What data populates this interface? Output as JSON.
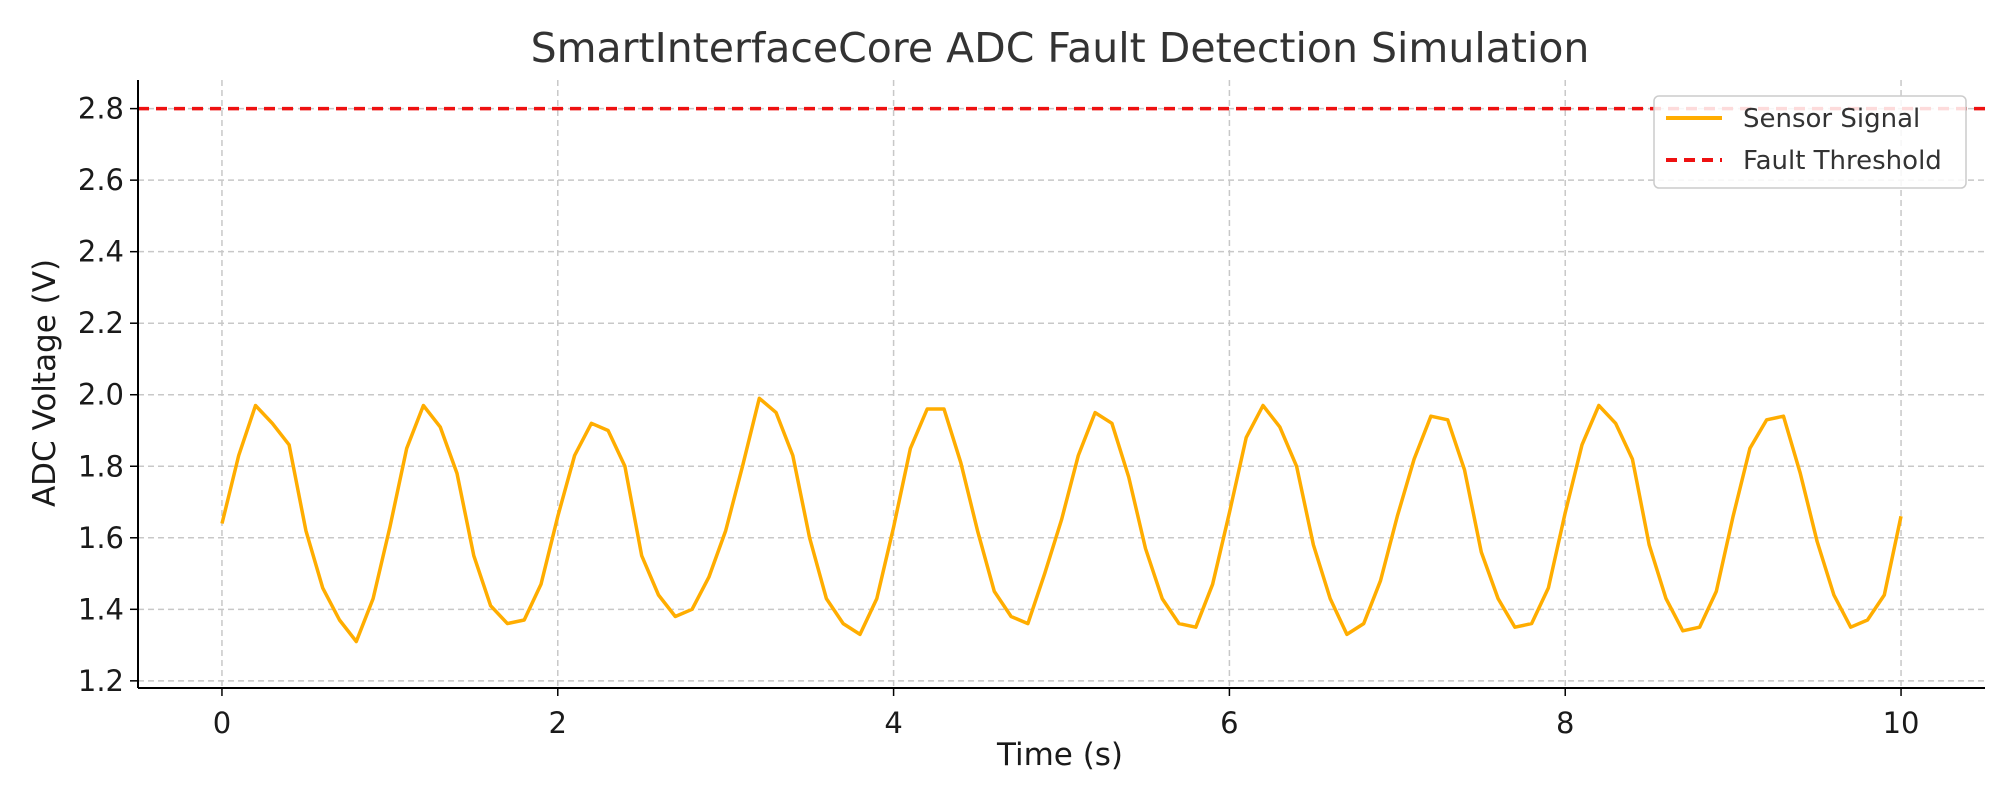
{
  "chart_data": {
    "type": "line",
    "title": "SmartInterfaceCore ADC Fault Detection Simulation",
    "xlabel": "Time (s)",
    "ylabel": "ADC Voltage (V)",
    "xlim": [
      -0.5,
      10.5
    ],
    "ylim": [
      1.18,
      2.88
    ],
    "x_ticks": [
      0,
      2,
      4,
      6,
      8,
      10
    ],
    "y_ticks": [
      1.2,
      1.4,
      1.6,
      1.8,
      2.0,
      2.2,
      2.4,
      2.6,
      2.8
    ],
    "grid": true,
    "legend_position": "top-right",
    "series": [
      {
        "name": "Sensor Signal",
        "color": "#ffad00",
        "style": "solid",
        "x": [
          0,
          0.1,
          0.2,
          0.3,
          0.4,
          0.5,
          0.6,
          0.7,
          0.8,
          0.9,
          1.0,
          1.1,
          1.2,
          1.3,
          1.4,
          1.5,
          1.6,
          1.7,
          1.8,
          1.9,
          2.0,
          2.1,
          2.2,
          2.3,
          2.4,
          2.5,
          2.6,
          2.7,
          2.8,
          2.9,
          3.0,
          3.1,
          3.2,
          3.3,
          3.4,
          3.5,
          3.6,
          3.7,
          3.8,
          3.9,
          4.0,
          4.1,
          4.2,
          4.3,
          4.4,
          4.5,
          4.6,
          4.7,
          4.8,
          4.9,
          5.0,
          5.1,
          5.2,
          5.3,
          5.4,
          5.5,
          5.6,
          5.7,
          5.8,
          5.9,
          6.0,
          6.1,
          6.2,
          6.3,
          6.4,
          6.5,
          6.6,
          6.7,
          6.8,
          6.9,
          7.0,
          7.1,
          7.2,
          7.3,
          7.4,
          7.5,
          7.6,
          7.7,
          7.8,
          7.9,
          8.0,
          8.1,
          8.2,
          8.3,
          8.4,
          8.5,
          8.6,
          8.7,
          8.8,
          8.9,
          9.0,
          9.1,
          9.2,
          9.3,
          9.4,
          9.5,
          9.6,
          9.7,
          9.8,
          9.9,
          10.0
        ],
        "y": [
          1.64,
          1.83,
          1.97,
          1.92,
          1.86,
          1.62,
          1.46,
          1.37,
          1.31,
          1.43,
          1.63,
          1.85,
          1.97,
          1.91,
          1.78,
          1.55,
          1.41,
          1.36,
          1.37,
          1.47,
          1.66,
          1.83,
          1.92,
          1.9,
          1.8,
          1.55,
          1.44,
          1.38,
          1.4,
          1.49,
          1.62,
          1.8,
          1.99,
          1.95,
          1.83,
          1.6,
          1.43,
          1.36,
          1.33,
          1.43,
          1.63,
          1.85,
          1.96,
          1.96,
          1.81,
          1.62,
          1.45,
          1.38,
          1.36,
          1.5,
          1.65,
          1.83,
          1.95,
          1.92,
          1.77,
          1.57,
          1.43,
          1.36,
          1.35,
          1.47,
          1.67,
          1.88,
          1.97,
          1.91,
          1.8,
          1.58,
          1.43,
          1.33,
          1.36,
          1.48,
          1.66,
          1.82,
          1.94,
          1.93,
          1.79,
          1.56,
          1.43,
          1.35,
          1.36,
          1.46,
          1.67,
          1.86,
          1.97,
          1.92,
          1.82,
          1.58,
          1.43,
          1.34,
          1.35,
          1.45,
          1.66,
          1.85,
          1.93,
          1.94,
          1.78,
          1.59,
          1.44,
          1.35,
          1.37,
          1.44,
          1.66
        ]
      },
      {
        "name": "Fault Threshold",
        "color": "#ee1111",
        "style": "dashed",
        "value": 2.8
      }
    ]
  }
}
